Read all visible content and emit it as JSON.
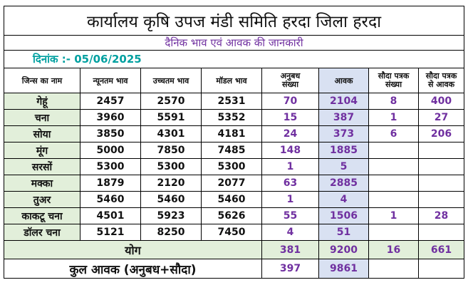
{
  "header": {
    "title": "कार्यालय कृषि उपज मंडी समिति हरदा जिला हरदा",
    "subtitle": "दैनिक भाव एवं आवक की जानकारी",
    "date_label": "दिनांक :- 05/06/2025"
  },
  "columns": {
    "c0": "जिन्स का नाम",
    "c1": "न्यूनतम भाव",
    "c2": "उच्चतम भाव",
    "c3": "मॉडल भाव",
    "c4_l1": "अनुबध",
    "c4_l2": "संख्या",
    "c5": "आवक",
    "c6_l1": "सौदा पत्रक",
    "c6_l2": "संख्या",
    "c7_l1": "सौदा पत्रक",
    "c7_l2": "से आवक"
  },
  "rows": [
    {
      "name": "गेहूं",
      "min": "2457",
      "max": "2570",
      "modal": "2531",
      "anubadh": "70",
      "awak": "2104",
      "sauda_count": "8",
      "sauda_awak": "400"
    },
    {
      "name": "चना",
      "min": "3960",
      "max": "5591",
      "modal": "5352",
      "anubadh": "15",
      "awak": "387",
      "sauda_count": "1",
      "sauda_awak": "27"
    },
    {
      "name": "सोया",
      "min": "3850",
      "max": "4301",
      "modal": "4181",
      "anubadh": "24",
      "awak": "373",
      "sauda_count": "6",
      "sauda_awak": "206"
    },
    {
      "name": "मूंग",
      "min": "5000",
      "max": "7850",
      "modal": "7485",
      "anubadh": "148",
      "awak": "1885",
      "sauda_count": "",
      "sauda_awak": ""
    },
    {
      "name": "सरसों",
      "min": "5300",
      "max": "5300",
      "modal": "5300",
      "anubadh": "1",
      "awak": "5",
      "sauda_count": "",
      "sauda_awak": ""
    },
    {
      "name": "मक्का",
      "min": "1879",
      "max": "2120",
      "modal": "2077",
      "anubadh": "63",
      "awak": "2885",
      "sauda_count": "",
      "sauda_awak": ""
    },
    {
      "name": "तुअर",
      "min": "5460",
      "max": "5460",
      "modal": "5460",
      "anubadh": "1",
      "awak": "4",
      "sauda_count": "",
      "sauda_awak": ""
    },
    {
      "name": "काकटू चना",
      "min": "4501",
      "max": "5923",
      "modal": "5626",
      "anubadh": "55",
      "awak": "1506",
      "sauda_count": "1",
      "sauda_awak": "28"
    },
    {
      "name": "डॉलर चना",
      "min": "5121",
      "max": "8250",
      "modal": "7450",
      "anubadh": "4",
      "awak": "51",
      "sauda_count": "",
      "sauda_awak": ""
    }
  ],
  "total": {
    "label": "योग",
    "anubadh": "381",
    "awak": "9200",
    "sauda_count": "16",
    "sauda_awak": "661"
  },
  "grand_total": {
    "label": "कुल आवक (अनुबध+सौदा)",
    "anubadh": "397",
    "awak": "9861"
  }
}
